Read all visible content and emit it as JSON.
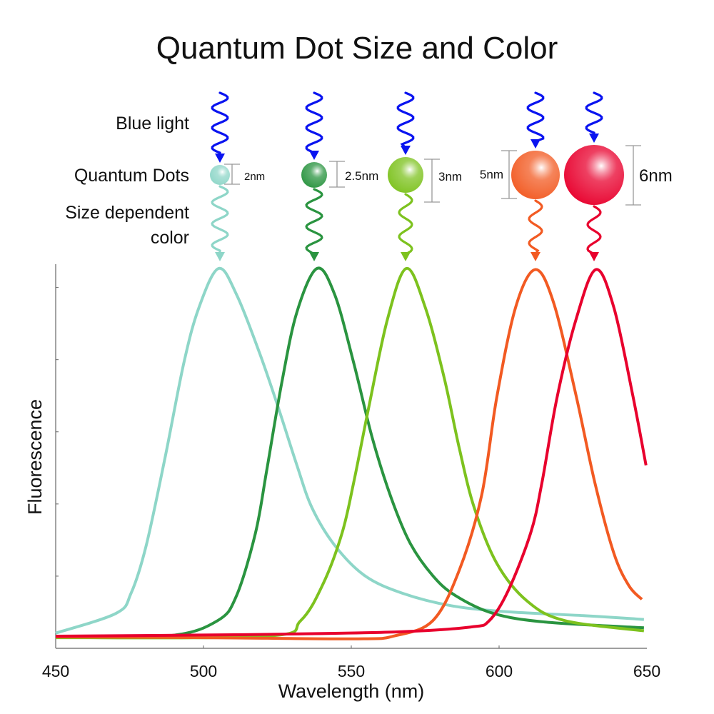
{
  "title": "Quantum Dot Size and Color",
  "row_labels": {
    "blue_light": "Blue light",
    "quantum_dots": "Quantum Dots",
    "size_dependent_1": "Size dependent",
    "size_dependent_2": "color"
  },
  "excitation_color": "#0a14f0",
  "dots": [
    {
      "size_label": "2nm",
      "color": "#8ed6c8"
    },
    {
      "size_label": "2.5nm",
      "color": "#2a9440"
    },
    {
      "size_label": "3nm",
      "color": "#7dc21e"
    },
    {
      "size_label": "5nm",
      "color": "#f25a22"
    },
    {
      "size_label": "6nm",
      "color": "#e8002d"
    }
  ],
  "chart_data": {
    "type": "line",
    "xlabel": "Wavelength (nm)",
    "ylabel": "Fluorescence",
    "xlim": [
      450,
      650
    ],
    "ylim": [
      0,
      1.04
    ],
    "xticks": [
      "450",
      "500",
      "550",
      "600",
      "650"
    ],
    "y_tick_labels_shown": false,
    "grid": false,
    "series": [
      {
        "color": "#8ed6c8",
        "x": [
          450,
          470.4,
          475.5,
          480.6,
          487,
          493.4,
          498.5,
          505.1,
          511.2,
          518.9,
          525.3,
          531.6,
          536.7,
          544.4,
          554.6,
          567.3,
          583.9,
          603.1,
          628.6,
          649
        ],
        "y": [
          0.04,
          0.092,
          0.145,
          0.27,
          0.502,
          0.753,
          0.898,
          1.0,
          0.931,
          0.779,
          0.634,
          0.482,
          0.37,
          0.271,
          0.191,
          0.145,
          0.112,
          0.096,
          0.086,
          0.076
        ]
      },
      {
        "color": "#2a9440",
        "x": [
          450,
          488.3,
          504.8,
          511.2,
          517.6,
          521.4,
          526.5,
          531.6,
          538.4,
          544.4,
          550.8,
          557.1,
          563.5,
          569.9,
          577.6,
          585.2,
          598,
          615.8,
          649
        ],
        "y": [
          0.03,
          0.033,
          0.073,
          0.139,
          0.304,
          0.469,
          0.7,
          0.885,
          1.0,
          0.931,
          0.752,
          0.554,
          0.396,
          0.277,
          0.191,
          0.139,
          0.092,
          0.069,
          0.054
        ]
      },
      {
        "color": "#7dc21e",
        "x": [
          450,
          521.4,
          532.9,
          540.6,
          546.9,
          550.8,
          555.9,
          562.2,
          568.6,
          575,
          581.4,
          586.5,
          591.6,
          599.2,
          609.4,
          622.2,
          649
        ],
        "y": [
          0.028,
          0.032,
          0.073,
          0.172,
          0.304,
          0.436,
          0.634,
          0.865,
          1.0,
          0.898,
          0.713,
          0.528,
          0.37,
          0.224,
          0.125,
          0.073,
          0.046
        ]
      },
      {
        "color": "#f25a22",
        "x": [
          450,
          501,
          552,
          564.8,
          577.6,
          586.5,
          594.1,
          599.2,
          605.6,
          612.2,
          618.4,
          626,
          632.4,
          638.8,
          643.9,
          648.3
        ],
        "y": [
          0.03,
          0.028,
          0.025,
          0.033,
          0.073,
          0.205,
          0.403,
          0.66,
          0.898,
          0.997,
          0.911,
          0.667,
          0.436,
          0.251,
          0.165,
          0.129
        ]
      },
      {
        "color": "#e8002d",
        "x": [
          450,
          513.8,
          564.8,
          590.3,
          596.7,
          603.1,
          610.7,
          614.5,
          619.6,
          626,
          632.7,
          638.8,
          645.2,
          649.7
        ],
        "y": [
          0.032,
          0.036,
          0.043,
          0.056,
          0.073,
          0.152,
          0.304,
          0.436,
          0.66,
          0.865,
          0.997,
          0.898,
          0.667,
          0.482
        ]
      }
    ]
  }
}
